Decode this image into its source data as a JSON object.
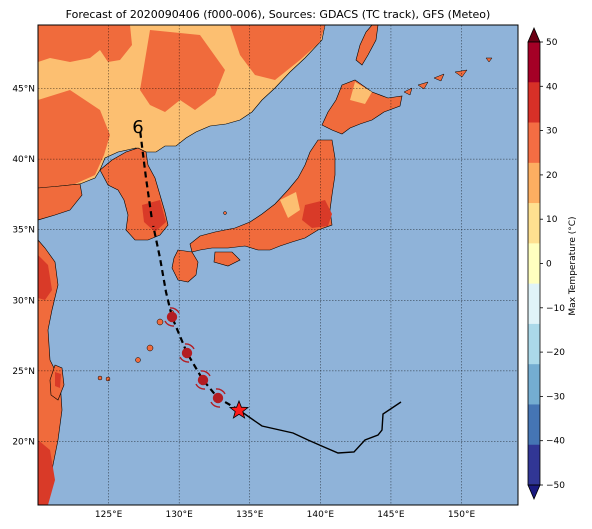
{
  "title": "Forecast of 2020090406 (f000-006), Sources: GDACS (TC track), GFS (Meteo)",
  "map": {
    "lon_range": [
      120,
      154
    ],
    "lat_range": [
      15.5,
      49.5
    ],
    "lon_ticks": [
      "125°E",
      "130°E",
      "135°E",
      "140°E",
      "145°E",
      "150°E"
    ],
    "lat_ticks": [
      "20°N",
      "25°N",
      "30°N",
      "35°N",
      "40°N",
      "45°N"
    ],
    "grid": true,
    "ocean_color": "#8fb3d9",
    "land_palette": {
      "10to20": "#fcbf71",
      "20to30": "#f06b3c",
      "30to35": "#d93a28",
      "35to40": "#b31d23"
    }
  },
  "colorbar": {
    "label": "Max Temperature (°C)",
    "ticks": [
      "50",
      "40",
      "30",
      "20",
      "10",
      "0",
      "−10",
      "−20",
      "−30",
      "−40",
      "−50"
    ],
    "colors": [
      "#6b0014",
      "#a50026",
      "#d73027",
      "#f46d43",
      "#fdae61",
      "#fee090",
      "#ffffbf",
      "#e0f3f8",
      "#abd9e9",
      "#74add1",
      "#4575b4",
      "#313695",
      "#1a1a80"
    ]
  },
  "track": {
    "current_position_marker": "red-star",
    "forecast_label": "6",
    "symbol": "tropical-cyclone-icon"
  }
}
